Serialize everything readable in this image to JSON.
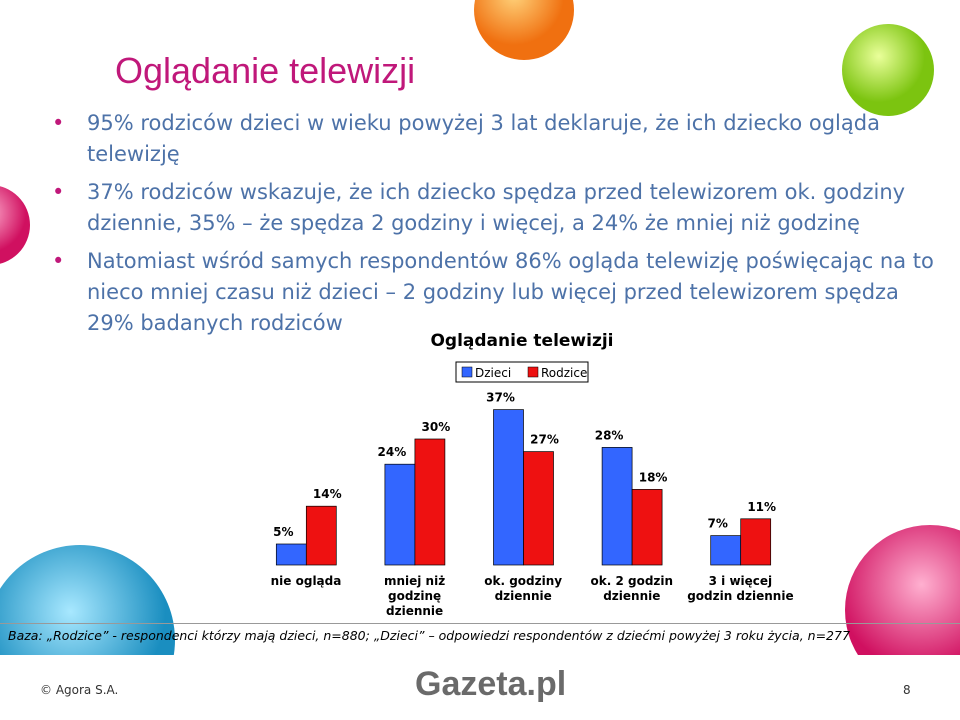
{
  "title": "Oglądanie telewizji",
  "bullets": [
    "95% rodziców dzieci w wieku powyżej 3 lat deklaruje, że ich dziecko ogląda telewizję",
    "37% rodziców wskazuje, że ich dziecko spędza przed telewizorem ok. godziny dziennie, 35% – że spędza 2 godziny i więcej, a 24% że mniej niż godzinę",
    "Natomiast wśród samych respondentów 86% ogląda telewizję poświęcając na to nieco mniej czasu niż dzieci – 2 godziny lub więcej przed telewizorem spędza 29% badanych rodziców"
  ],
  "chart_data": {
    "type": "bar",
    "title": "Oglądanie telewizji",
    "categories": [
      "nie ogląda",
      "mniej niż godzinę dziennie",
      "ok. godziny dziennie",
      "ok. 2 godzin dziennie",
      "3 i więcej godzin dziennie"
    ],
    "series": [
      {
        "name": "Dzieci",
        "color": "#3366ff",
        "values": [
          5,
          24,
          37,
          28,
          7
        ],
        "value_labels": [
          "5%",
          "24%",
          "37%",
          "28%",
          "7%"
        ]
      },
      {
        "name": "Rodzice",
        "color": "#ee1111",
        "values": [
          14,
          30,
          27,
          18,
          11
        ],
        "value_labels": [
          "14%",
          "30%",
          "27%",
          "18%",
          "11%"
        ]
      }
    ],
    "ylim": [
      0,
      40
    ]
  },
  "footnote": "Baza: „Rodzice” - respondenci którzy mają dzieci, n=880; „Dzieci” – odpowiedzi respondentów z dziećmi powyżej 3 roku życia, n=277",
  "copyright": "© Agora S.A.",
  "logo": "Gazeta.pl",
  "page_number": "8"
}
